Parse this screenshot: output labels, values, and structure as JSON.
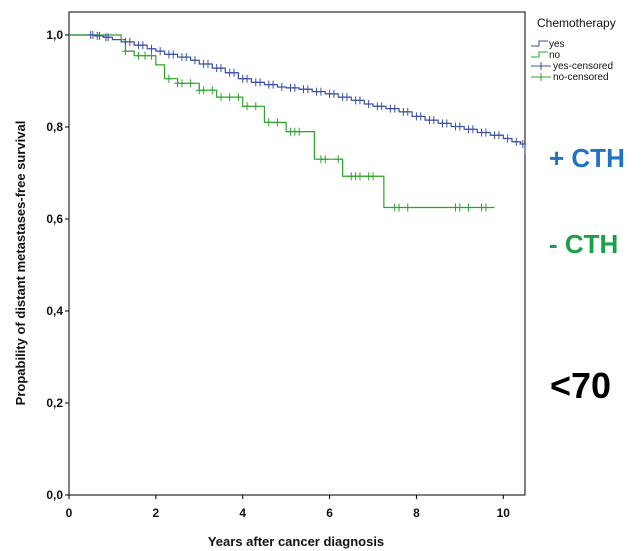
{
  "chart_data": {
    "type": "line",
    "subtype": "kaplan-meier",
    "title": "",
    "xlabel": "Years after cancer diagnosis",
    "ylabel": "Propability of distant metastases-free survival",
    "xlim": [
      0,
      10.5
    ],
    "ylim": [
      0,
      1.05
    ],
    "xticks": [
      0,
      2,
      4,
      6,
      8,
      10
    ],
    "xtick_labels": [
      "0",
      "2",
      "4",
      "6",
      "8",
      "10"
    ],
    "yticks": [
      0,
      0.2,
      0.4,
      0.6,
      0.8,
      1.0
    ],
    "ytick_labels": [
      "0,0",
      "0,2",
      "0,4",
      "0,6",
      "0,8",
      "1,0"
    ],
    "grid": false,
    "legend": {
      "title": "Chemotherapy",
      "position": "top-right",
      "entries": [
        "yes",
        "no",
        "yes-censored",
        "no-censored"
      ]
    },
    "series": [
      {
        "name": "yes",
        "color": "#3b4fa8",
        "x": [
          0,
          0.6,
          0.8,
          1.0,
          1.2,
          1.5,
          1.8,
          2.0,
          2.2,
          2.5,
          2.8,
          3.0,
          3.3,
          3.6,
          3.9,
          4.2,
          4.5,
          4.8,
          5.0,
          5.3,
          5.6,
          5.9,
          6.2,
          6.5,
          6.8,
          7.0,
          7.3,
          7.6,
          7.9,
          8.2,
          8.5,
          8.8,
          9.1,
          9.4,
          9.7,
          10.0,
          10.2,
          10.4,
          10.5
        ],
        "y": [
          1.0,
          0.998,
          0.995,
          0.99,
          0.985,
          0.978,
          0.97,
          0.965,
          0.958,
          0.952,
          0.945,
          0.937,
          0.928,
          0.918,
          0.905,
          0.897,
          0.892,
          0.887,
          0.885,
          0.882,
          0.877,
          0.872,
          0.865,
          0.858,
          0.85,
          0.845,
          0.84,
          0.833,
          0.823,
          0.815,
          0.808,
          0.801,
          0.795,
          0.788,
          0.782,
          0.775,
          0.768,
          0.763,
          0.74
        ],
        "censored_x": [
          0.5,
          0.55,
          0.65,
          0.7,
          0.85,
          0.9,
          1.3,
          1.4,
          1.6,
          1.7,
          1.9,
          2.1,
          2.3,
          2.4,
          2.6,
          2.7,
          2.9,
          3.1,
          3.2,
          3.4,
          3.5,
          3.7,
          3.8,
          4.0,
          4.1,
          4.3,
          4.4,
          4.6,
          4.7,
          4.9,
          5.1,
          5.2,
          5.4,
          5.5,
          5.7,
          5.8,
          6.0,
          6.1,
          6.3,
          6.4,
          6.6,
          6.7,
          6.9,
          7.1,
          7.2,
          7.4,
          7.5,
          7.7,
          7.8,
          8.0,
          8.1,
          8.3,
          8.4,
          8.6,
          8.7,
          8.9,
          9.0,
          9.2,
          9.3,
          9.5,
          9.6,
          9.8,
          9.9,
          10.1,
          10.3,
          10.45
        ]
      },
      {
        "name": "no",
        "color": "#2da32d",
        "x": [
          0,
          1.2,
          1.3,
          1.5,
          2.0,
          2.2,
          2.5,
          3.0,
          3.4,
          4.0,
          4.5,
          5.0,
          5.4,
          5.65,
          5.95,
          6.3,
          6.9,
          7.25,
          7.7,
          9.8
        ],
        "y": [
          1.0,
          0.99,
          0.965,
          0.955,
          0.935,
          0.905,
          0.895,
          0.88,
          0.865,
          0.845,
          0.81,
          0.79,
          0.79,
          0.73,
          0.73,
          0.693,
          0.693,
          0.625,
          0.625,
          0.625
        ],
        "censored_x": [
          1.3,
          1.6,
          1.75,
          1.9,
          2.3,
          2.5,
          2.6,
          2.8,
          3.0,
          3.1,
          3.3,
          3.5,
          3.7,
          3.9,
          4.1,
          4.3,
          4.6,
          4.8,
          5.1,
          5.2,
          5.3,
          5.8,
          5.9,
          6.2,
          6.5,
          6.6,
          6.7,
          6.9,
          7.0,
          7.5,
          7.6,
          7.8,
          8.9,
          9.0,
          9.2,
          9.5,
          9.6
        ]
      }
    ],
    "annotations": [
      {
        "text": "+ CTH",
        "color": "#1f72c4"
      },
      {
        "text": "- CTH",
        "color": "#1aa148"
      },
      {
        "text": "<70",
        "color": "#000000"
      }
    ]
  }
}
